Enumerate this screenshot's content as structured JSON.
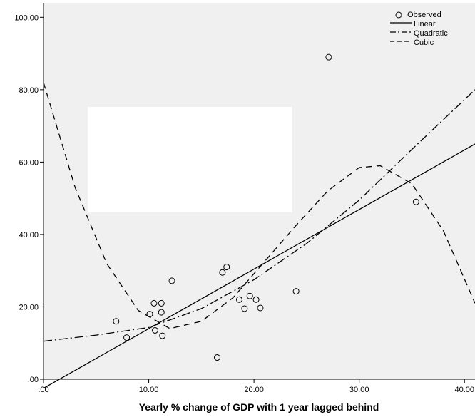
{
  "chart_data": {
    "type": "scatter",
    "title": "",
    "xlabel": "Yearly % change of GDP with 1 year lagged behind",
    "ylabel": "",
    "xlim": [
      0,
      41
    ],
    "ylim": [
      0,
      104
    ],
    "grid": false,
    "legend_position": "top-right",
    "x_ticks": [
      ".00",
      "10.00",
      "20.00",
      "30.00",
      "40.00"
    ],
    "y_ticks": [
      ".00",
      "20.00",
      "40.00",
      "60.00",
      "80.00",
      "100.00"
    ],
    "legend": [
      "Observed",
      "Linear",
      "Quadratic",
      "Cubic"
    ],
    "colors": {
      "plot_background": "#f0f0f0",
      "marks": "#000000",
      "occluder": "#ffffff"
    },
    "observed": [
      {
        "x": 6.9,
        "y": 16.0
      },
      {
        "x": 7.9,
        "y": 11.5
      },
      {
        "x": 10.1,
        "y": 18.0
      },
      {
        "x": 10.5,
        "y": 21.0
      },
      {
        "x": 10.6,
        "y": 13.5
      },
      {
        "x": 11.2,
        "y": 21.0
      },
      {
        "x": 11.2,
        "y": 18.5
      },
      {
        "x": 11.3,
        "y": 12.0
      },
      {
        "x": 12.2,
        "y": 27.2
      },
      {
        "x": 16.5,
        "y": 6.0
      },
      {
        "x": 17.0,
        "y": 29.5
      },
      {
        "x": 17.4,
        "y": 31.0
      },
      {
        "x": 18.6,
        "y": 22.0
      },
      {
        "x": 19.1,
        "y": 19.5
      },
      {
        "x": 19.6,
        "y": 23.0
      },
      {
        "x": 20.2,
        "y": 22.0
      },
      {
        "x": 20.6,
        "y": 19.7
      },
      {
        "x": 24.0,
        "y": 24.3
      },
      {
        "x": 27.1,
        "y": 89.0
      },
      {
        "x": 35.4,
        "y": 49.0
      }
    ],
    "series": [
      {
        "name": "Linear",
        "style": "solid",
        "x": [
          0,
          41
        ],
        "y": [
          -2.5,
          65
        ]
      },
      {
        "name": "Quadratic",
        "style": "dashdot",
        "x": [
          0,
          5,
          10,
          15,
          20,
          25,
          30,
          35,
          41
        ],
        "y": [
          10.5,
          12.2,
          14.3,
          19.5,
          27.5,
          37.5,
          49.5,
          63.5,
          80
        ]
      },
      {
        "name": "Cubic",
        "style": "dashed",
        "x": [
          0,
          3,
          6,
          9,
          12,
          15,
          18,
          21,
          24,
          27,
          30,
          32,
          35,
          38,
          41
        ],
        "y": [
          82,
          53,
          32,
          19,
          14,
          16,
          22.5,
          32.5,
          42.5,
          52,
          58.5,
          59,
          54,
          41,
          21
        ]
      }
    ]
  }
}
